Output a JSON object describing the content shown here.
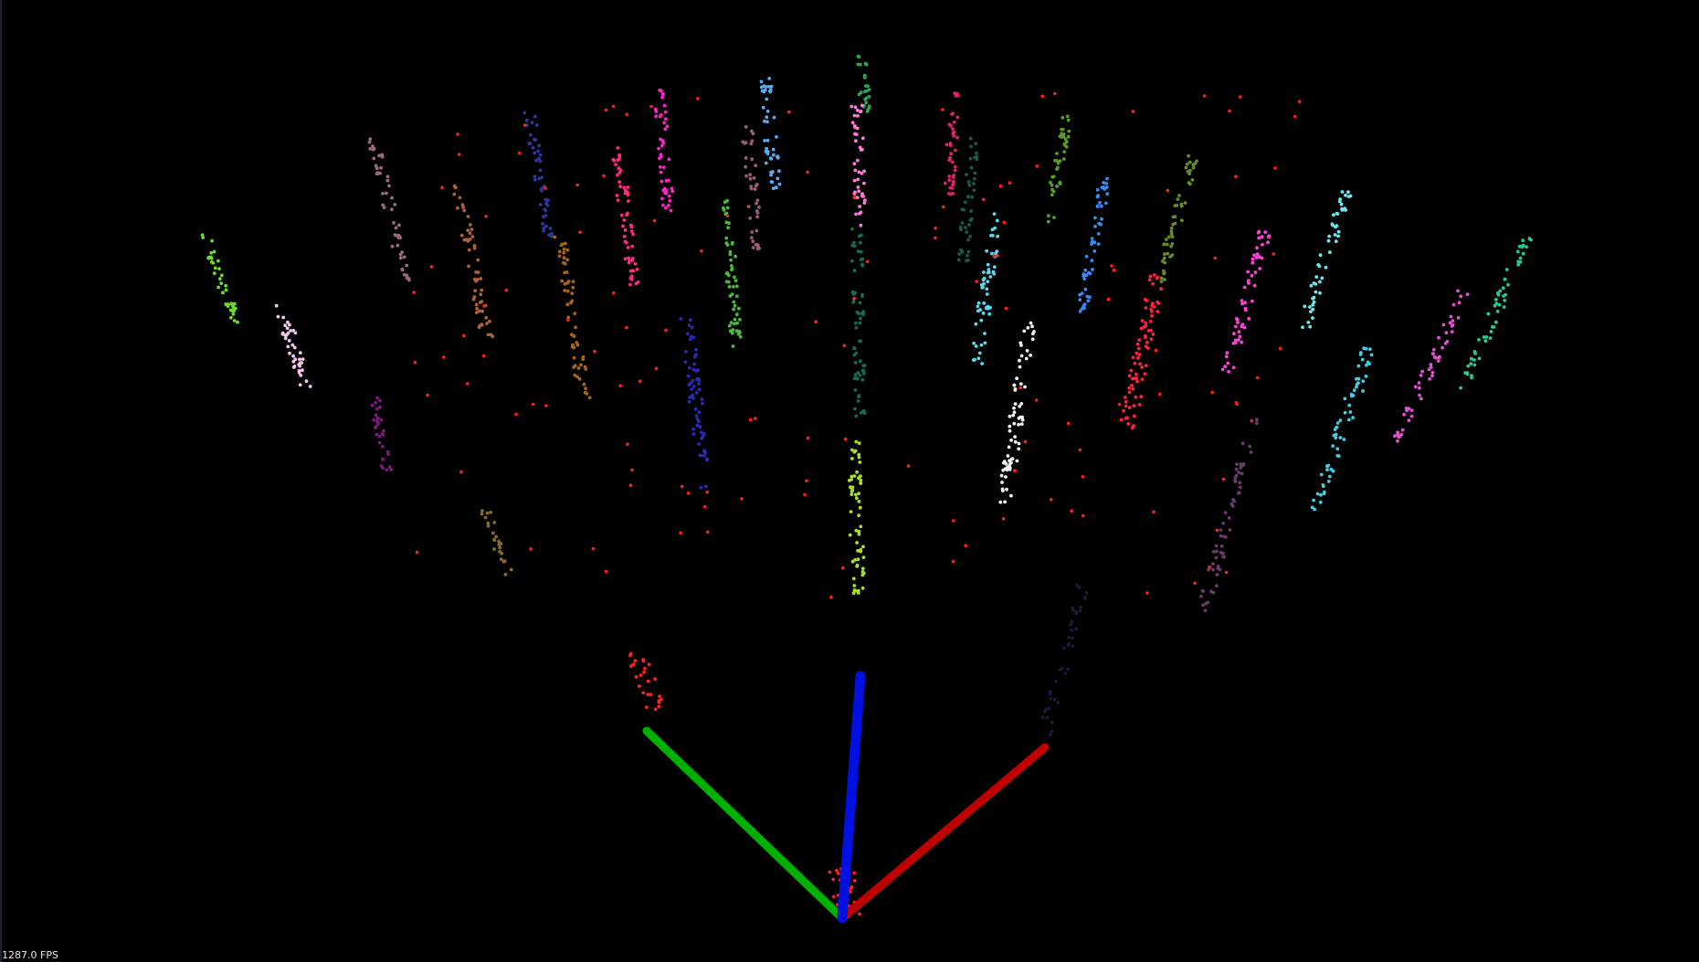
{
  "viewer": {
    "fps_text": "1287.0 FPS",
    "background": "#000000"
  },
  "axes": {
    "x_color": "#c00000",
    "y_color": "#00b000",
    "z_color": "#0010e0"
  },
  "point_clusters": [
    {
      "name": "green-cluster-far-left",
      "color": "#6adb2a"
    },
    {
      "name": "white-pink-cluster",
      "color": "#f4c4ec"
    },
    {
      "name": "mauve-cluster",
      "color": "#9a6a78"
    },
    {
      "name": "purple-cluster",
      "color": "#7a1a7a"
    },
    {
      "name": "brown-orange-cluster",
      "color": "#b0603a"
    },
    {
      "name": "navy-cluster",
      "color": "#2a3a9a"
    },
    {
      "name": "dark-orange-cluster",
      "color": "#a8641a"
    },
    {
      "name": "olive-brown-cluster",
      "color": "#8a6a2a"
    },
    {
      "name": "hot-pink-cluster",
      "color": "#ff2a80"
    },
    {
      "name": "magenta-cluster",
      "color": "#ff22c8"
    },
    {
      "name": "indigo-cluster",
      "color": "#2a2ab8"
    },
    {
      "name": "sky-blue-cluster",
      "color": "#5aaaf0"
    },
    {
      "name": "rose-brown-cluster",
      "color": "#9a5a7a"
    },
    {
      "name": "lime-green-cluster",
      "color": "#4aba3a"
    },
    {
      "name": "green-top-cluster",
      "color": "#2aa850"
    },
    {
      "name": "pink-column-cluster",
      "color": "#ff7ad8"
    },
    {
      "name": "dark-teal-column-cluster",
      "color": "#1a6a4a"
    },
    {
      "name": "yellow-green-cluster",
      "color": "#a8e02a"
    },
    {
      "name": "crimson-cluster",
      "color": "#e0206a"
    },
    {
      "name": "dark-green-cluster",
      "color": "#1a5a4a"
    },
    {
      "name": "cyan-cluster",
      "color": "#5ad8f0"
    },
    {
      "name": "white-cluster",
      "color": "#f0f0f0"
    },
    {
      "name": "olive-green-cluster",
      "color": "#5a9a2a"
    },
    {
      "name": "blue-cluster",
      "color": "#3a8af0"
    },
    {
      "name": "olive-cluster",
      "color": "#6a8a2a"
    },
    {
      "name": "red-cluster",
      "color": "#ff2040"
    },
    {
      "name": "pink-magenta-cluster",
      "color": "#ff40d8"
    },
    {
      "name": "dark-plum-cluster",
      "color": "#6a3a6a"
    },
    {
      "name": "aqua-cluster",
      "color": "#6ae8f0"
    },
    {
      "name": "teal-blue-cluster",
      "color": "#4ac8e0"
    },
    {
      "name": "orchid-cluster",
      "color": "#e050d0"
    },
    {
      "name": "sea-green-cluster",
      "color": "#2ac890"
    },
    {
      "name": "dark-navy-cluster",
      "color": "#1a1a3a"
    },
    {
      "name": "red-small-cluster",
      "color": "#ff2020"
    },
    {
      "name": "red-origin-cluster",
      "color": "#ff2020"
    },
    {
      "name": "scattered-red-points",
      "color": "#ff2020"
    }
  ]
}
